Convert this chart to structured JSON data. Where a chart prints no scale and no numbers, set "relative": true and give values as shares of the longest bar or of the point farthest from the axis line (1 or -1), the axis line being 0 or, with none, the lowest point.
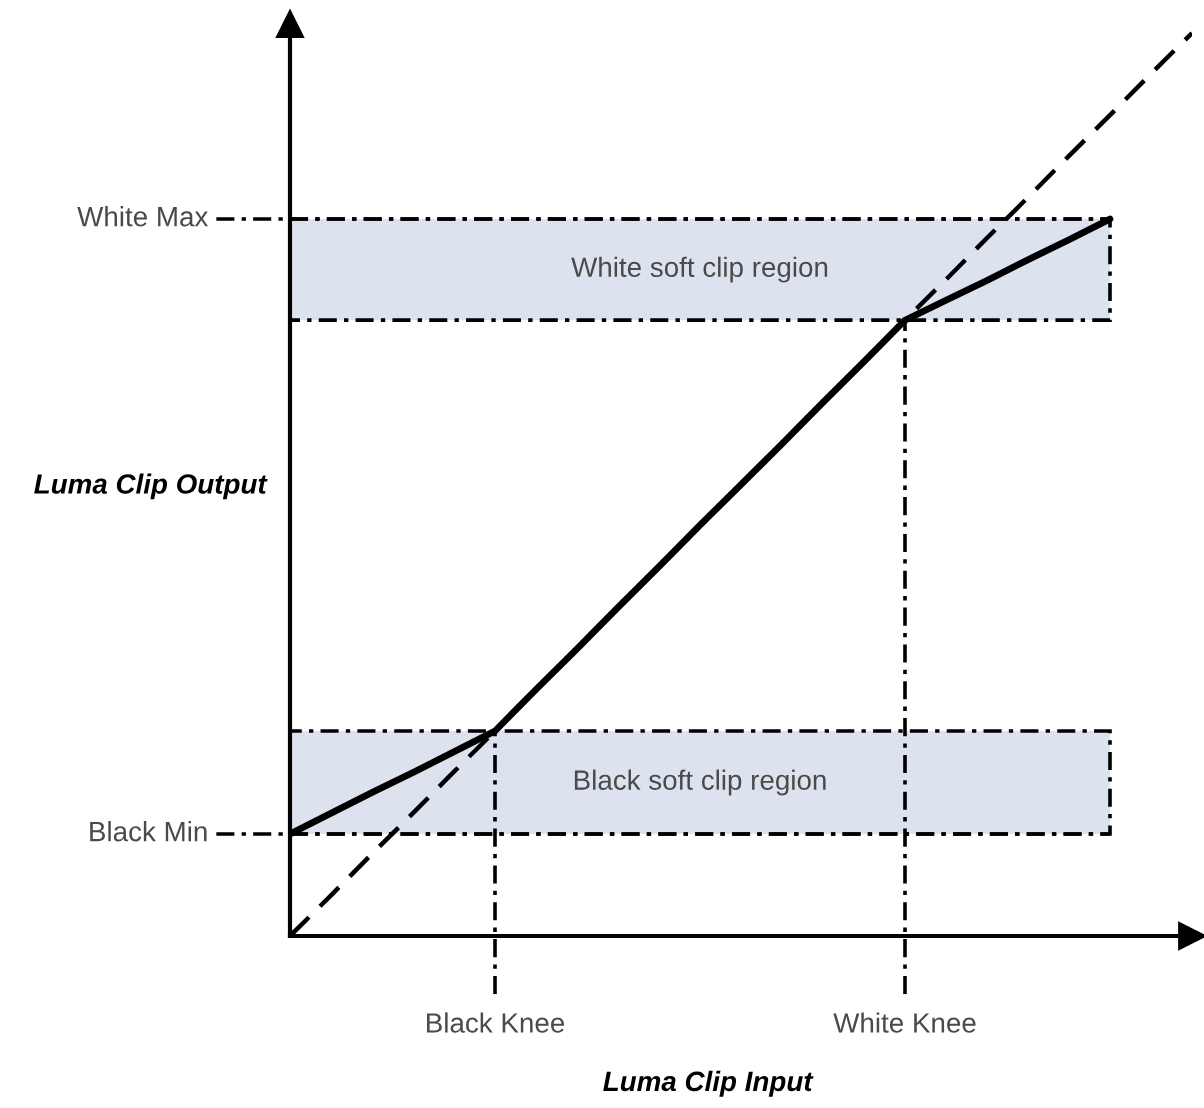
{
  "chart_data": {
    "type": "line",
    "relative": true,
    "xlabel": "Luma Clip Input",
    "ylabel": "Luma Clip Output",
    "tick_labels": "x",
    "categories": [
      null,
      null,
      null,
      null,
      null,
      "Black Knee",
      null,
      null,
      null,
      null,
      null,
      null,
      null,
      null,
      null,
      "White Knee",
      null,
      null,
      null,
      null,
      null,
      null,
      null
    ],
    "series": [
      {
        "values": [
          0.113,
          0.136,
          0.159,
          0.181,
          0.204,
          0.227,
          0.273,
          0.318,
          0.364,
          0.409,
          0.455,
          0.5,
          0.545,
          0.591,
          0.636,
          0.682,
          0.704,
          0.726,
          0.749,
          0.771,
          0.794,
          null,
          null
        ],
        "color": "#000000",
        "line_style": "solid"
      },
      {
        "values": [
          0,
          0.045,
          0.091,
          0.136,
          0.182,
          0.227,
          0.273,
          0.318,
          0.364,
          0.409,
          0.455,
          0.5,
          0.545,
          0.591,
          0.636,
          0.682,
          0.727,
          0.773,
          0.818,
          0.864,
          0.909,
          0.955,
          1
        ],
        "color": "#000000",
        "line_style": "dashed"
      }
    ],
    "bands": [
      {
        "axis": "y",
        "from": 0.113,
        "to": 0.227,
        "label": "Black soft clip region",
        "color": "#dce3ee"
      },
      {
        "axis": "y",
        "from": 0.682,
        "to": 0.794,
        "label": "White soft clip region",
        "color": "#dce3ee"
      }
    ],
    "ref_lines": [
      {
        "axis": "y",
        "value": 0.794,
        "label": "White Max",
        "line_style": "dashdot"
      },
      {
        "axis": "y",
        "value": 0.113,
        "label": "Black Min",
        "line_style": "dashdot"
      },
      {
        "axis": "x",
        "value": "Black Knee",
        "line_style": "dashdot"
      },
      {
        "axis": "x",
        "value": "White Knee",
        "line_style": "dashdot"
      }
    ]
  }
}
